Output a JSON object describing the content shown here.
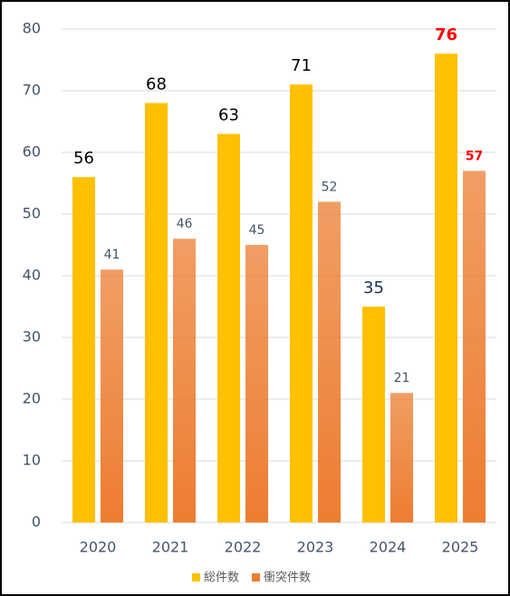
{
  "chart_data": {
    "type": "bar",
    "categories": [
      "2020",
      "2021",
      "2022",
      "2023",
      "2024",
      "2025"
    ],
    "series": [
      {
        "name": "総件数",
        "color": "#FFC000",
        "values": [
          56,
          68,
          63,
          71,
          35,
          76
        ],
        "label_colors": [
          "#000000",
          "#000000",
          "#000000",
          "#000000",
          "#1f3050",
          "#ff0000"
        ]
      },
      {
        "name": "衝突件数",
        "color": "#ED7D31",
        "values": [
          41,
          46,
          45,
          52,
          21,
          57
        ],
        "label_colors": [
          "#44546a",
          "#44546a",
          "#44546a",
          "#44546a",
          "#44546a",
          "#ff0000"
        ]
      }
    ],
    "ylim": [
      0,
      80
    ],
    "yticks": [
      0,
      10,
      20,
      30,
      40,
      50,
      60,
      70,
      80
    ],
    "grid": true,
    "legend": "bottom"
  }
}
